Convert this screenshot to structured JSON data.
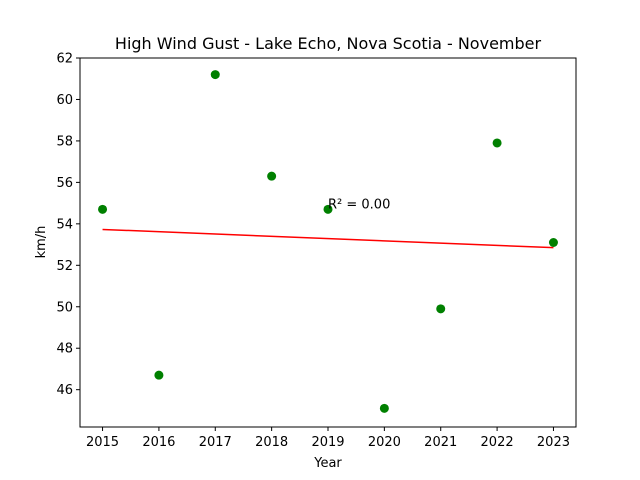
{
  "chart_data": {
    "type": "scatter",
    "title": "High Wind Gust - Lake Echo, Nova Scotia - November",
    "xlabel": "Year",
    "ylabel": "km/h",
    "x": [
      2015,
      2016,
      2017,
      2018,
      2019,
      2020,
      2021,
      2022,
      2023
    ],
    "y": [
      54.7,
      46.7,
      61.2,
      56.3,
      54.7,
      45.1,
      49.9,
      57.9,
      53.1
    ],
    "xlim": [
      2014.6,
      2023.4
    ],
    "ylim": [
      44.2,
      62
    ],
    "xticks": [
      2015,
      2016,
      2017,
      2018,
      2019,
      2020,
      2021,
      2022,
      2023
    ],
    "yticks": [
      46,
      48,
      50,
      52,
      54,
      56,
      58,
      60,
      62
    ],
    "trendline": {
      "x": [
        2015,
        2023
      ],
      "y": [
        53.73,
        52.85
      ]
    },
    "annotation": {
      "text": "R² = 0.00",
      "x": 2019,
      "y": 54.7
    },
    "grid": false,
    "colors": {
      "points": "#008000",
      "trendline": "#ff0000"
    }
  }
}
